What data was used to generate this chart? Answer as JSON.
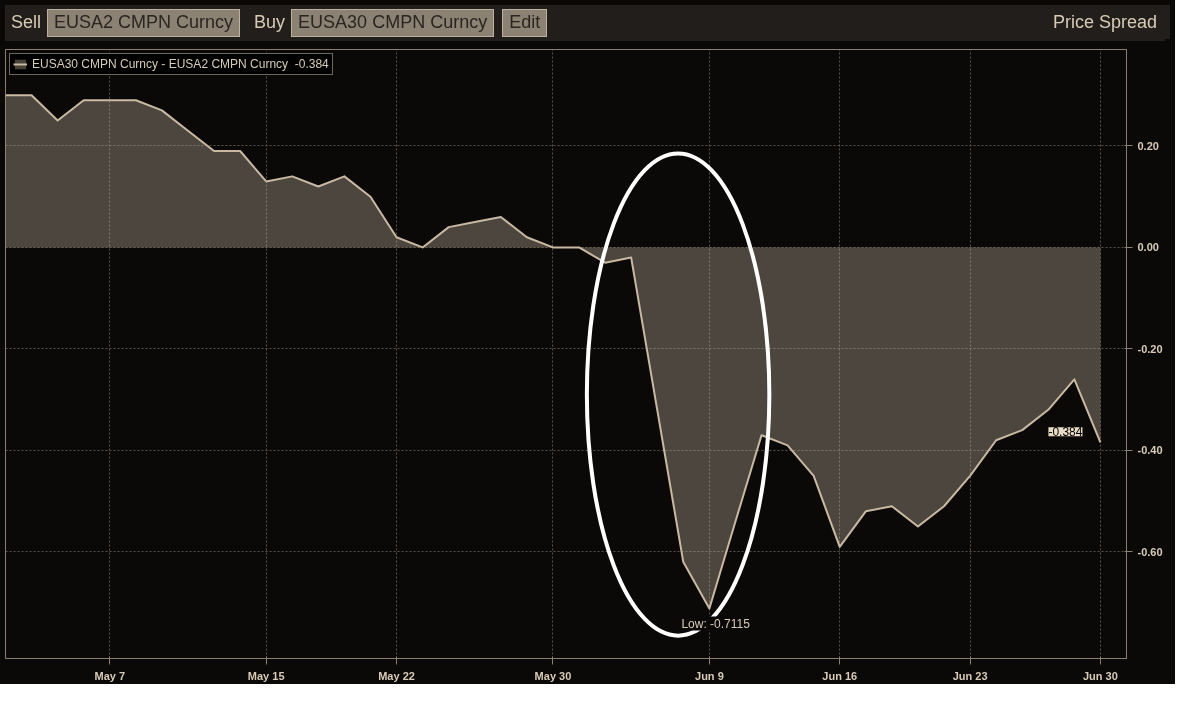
{
  "chart_data": {
    "type": "area",
    "title": "Price Spread",
    "annotations": [
      "Sell",
      "EUSA2 CMPN Curncy",
      "Buy",
      "EUSA30 CMPN Curncy",
      "Edit",
      {
        "text": "Low: -0.7115",
        "x": "Jun 9",
        "y": -0.7115
      },
      {
        "text": "-0.384",
        "x": "Jun 30",
        "y": -0.384
      }
    ],
    "categories": [
      null,
      null,
      null,
      null,
      "May 7",
      null,
      null,
      null,
      null,
      null,
      "May 15",
      null,
      null,
      null,
      null,
      "May 22",
      null,
      null,
      null,
      null,
      null,
      "May 30",
      null,
      null,
      null,
      null,
      null,
      "Jun 9",
      null,
      null,
      null,
      null,
      "Jun 16",
      null,
      null,
      null,
      null,
      "Jun 23",
      null,
      null,
      null,
      null,
      "Jun 30"
    ],
    "series": [
      {
        "name": "EUSA30 CMPN Curncy - EUSA2 CMPN Curncy  -0.384",
        "color": "#c9b9a2",
        "values": [
          0.3,
          0.3,
          0.25,
          0.29,
          0.29,
          0.29,
          0.27,
          0.23,
          0.19,
          0.19,
          0.13,
          0.14,
          0.12,
          0.14,
          0.1,
          0.02,
          0.0,
          0.04,
          0.05,
          0.06,
          0.02,
          0.0,
          0.0,
          -0.03,
          -0.02,
          -0.32,
          -0.62,
          -0.7115,
          -0.54,
          -0.37,
          -0.39,
          -0.45,
          -0.59,
          -0.52,
          -0.51,
          -0.55,
          -0.51,
          -0.45,
          -0.38,
          -0.36,
          -0.32,
          -0.26,
          -0.384
        ]
      }
    ],
    "ylim": [
      -0.81,
      0.39
    ],
    "yticks": [
      {
        "value": 0.2,
        "label": "0.20"
      },
      {
        "value": 0,
        "label": "0.00"
      },
      {
        "value": -0.2,
        "label": "-0.20"
      },
      {
        "value": -0.4,
        "label": "-0.40"
      },
      {
        "value": -0.6,
        "label": "-0.60"
      }
    ],
    "grid": true,
    "legend": "top left",
    "marker": "none",
    "line_style": "solid"
  }
}
